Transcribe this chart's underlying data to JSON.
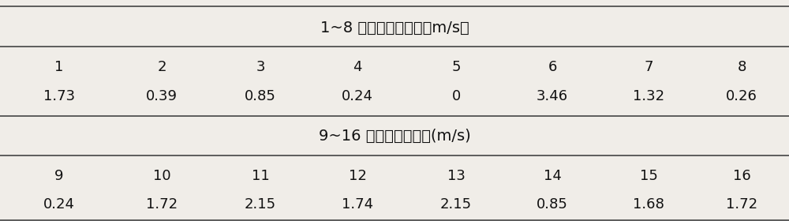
{
  "title1": "1~8 号泡温运动速度（m/s）",
  "title2": "9~16 号泡温运动速度(m/s)",
  "row1_labels": [
    "1",
    "2",
    "3",
    "4",
    "5",
    "6",
    "7",
    "8"
  ],
  "row1_values": [
    "1.73",
    "0.39",
    "0.85",
    "0.24",
    "0",
    "3.46",
    "1.32",
    "0.26"
  ],
  "row2_labels": [
    "9",
    "10",
    "11",
    "12",
    "13",
    "14",
    "15",
    "16"
  ],
  "row2_values": [
    "0.24",
    "1.72",
    "2.15",
    "1.74",
    "2.15",
    "0.85",
    "1.68",
    "1.72"
  ],
  "bg_color": "#f0ede8",
  "text_color": "#111111",
  "line_color": "#444444",
  "font_size_title": 14,
  "font_size_data": 13
}
